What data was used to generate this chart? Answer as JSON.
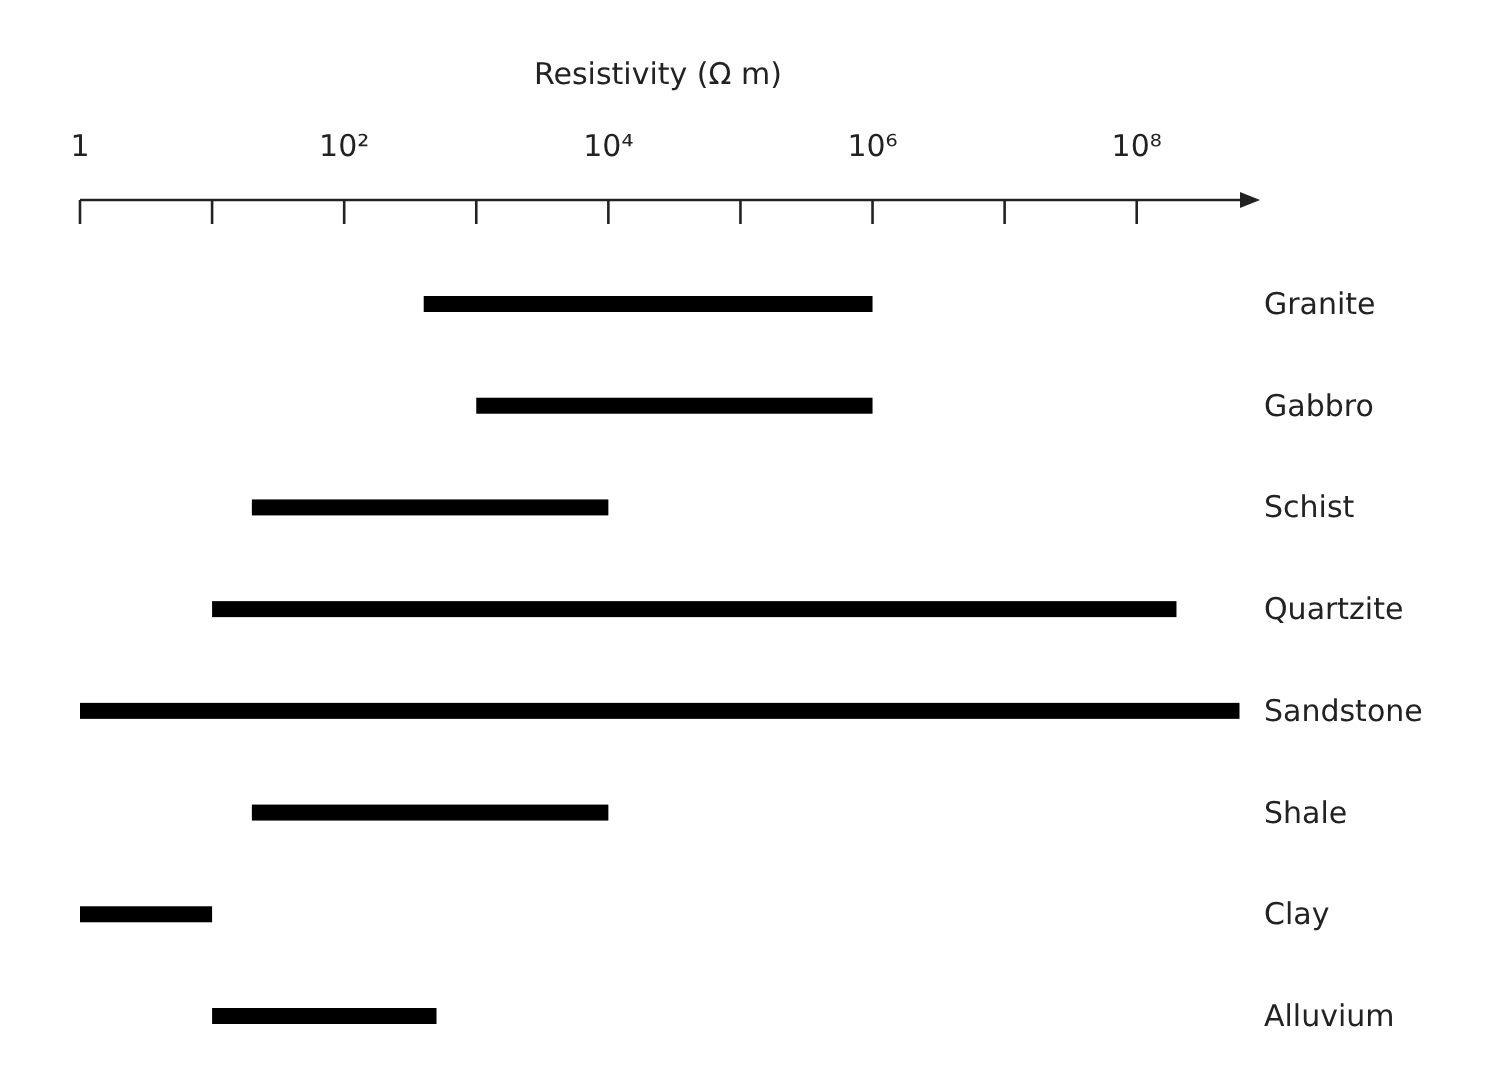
{
  "chart_data": {
    "type": "bar",
    "orientation": "horizontal",
    "log": "x",
    "xlabel": "Resistivity (Ω m)",
    "categories": [
      "Granite",
      "Gabbro",
      "Schist",
      "Quartzite",
      "Sandstone",
      "Shale",
      "Clay",
      "Alluvium"
    ],
    "base": [
      400,
      1000,
      20,
      10,
      1,
      20,
      1,
      10
    ],
    "values": [
      999600,
      999000,
      9980,
      199999990,
      599999999,
      9980,
      9,
      490
    ],
    "color": "#000000",
    "xlim": [
      1,
      800000000
    ],
    "xticks": [
      1,
      {
        "value": 100,
        "label": "10²"
      },
      {
        "value": 10000,
        "label": "10⁴"
      },
      {
        "value": 1000000,
        "label": "10⁶"
      },
      {
        "value": 100000000,
        "label": "10⁸"
      }
    ],
    "grid": false
  }
}
